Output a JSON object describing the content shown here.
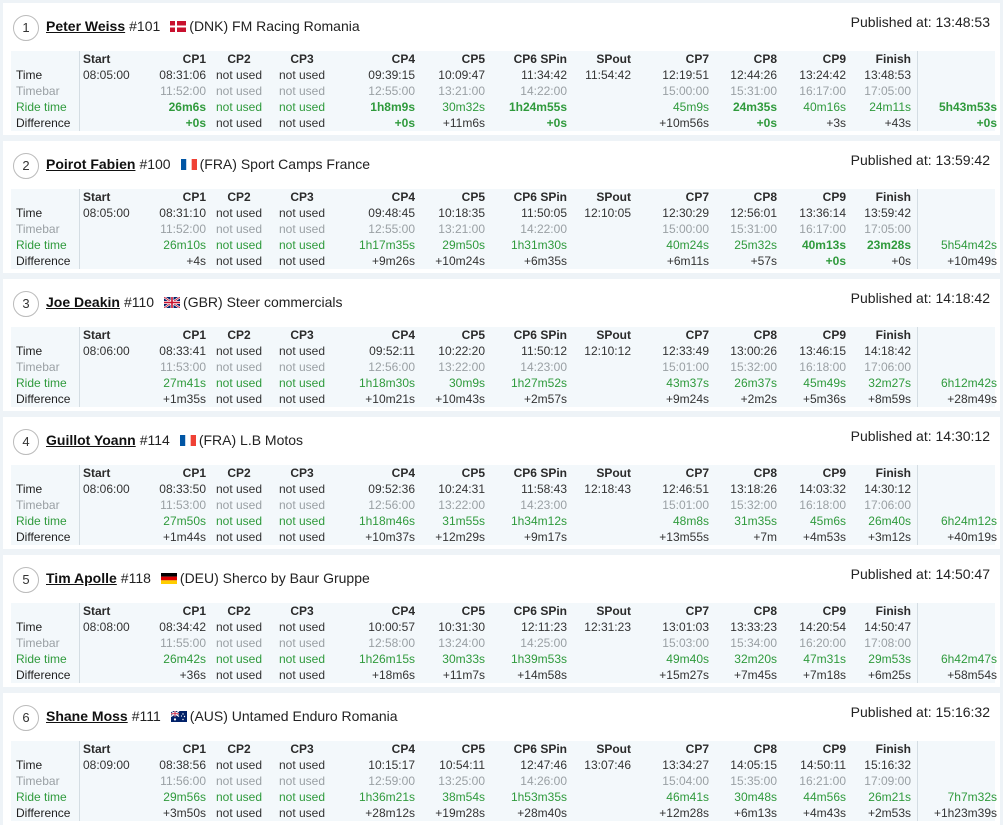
{
  "row_labels": [
    "Time",
    "Timebar",
    "Ride time",
    "Difference"
  ],
  "columns": [
    "Start",
    "CP1",
    "CP2",
    "CP3",
    "CP4",
    "CP5",
    "CP6 SPin",
    "SPout",
    "CP7",
    "CP8",
    "CP9",
    "Finish"
  ],
  "colors": {
    "ride_time": "#2f9a3c",
    "timebar": "#9aa0a4",
    "background": "#eef3f7"
  },
  "riders": [
    {
      "rank": "1",
      "name": "Peter Weiss",
      "number": "#101",
      "country": "DNK",
      "flag": "flag-dnk",
      "team": "(DNK) FM Racing Romania",
      "published": "Published at: 13:48:53",
      "time": [
        "08:05:00",
        "08:31:06",
        "not used",
        "not used",
        "09:39:15",
        "10:09:47",
        "11:34:42",
        "11:54:42",
        "12:19:51",
        "12:44:26",
        "13:24:42",
        "13:48:53"
      ],
      "timebar": [
        "",
        "11:52:00",
        "not used",
        "not used",
        "12:55:00",
        "13:21:00",
        "14:22:00",
        "",
        "15:00:00",
        "15:31:00",
        "16:17:00",
        "17:05:00"
      ],
      "ride": [
        "",
        "26m6s",
        "not used",
        "not used",
        "1h8m9s",
        "30m32s",
        "1h24m55s",
        "",
        "45m9s",
        "24m35s",
        "40m16s",
        "24m11s"
      ],
      "ride_total": "5h43m53s",
      "diff": [
        "",
        "+0s",
        "not used",
        "not used",
        "+0s",
        "+11m6s",
        "+0s",
        "",
        "+10m56s",
        "+0s",
        "+3s",
        "+43s"
      ],
      "diff_total": "+0s",
      "ride_bold": [
        1,
        4,
        6,
        9
      ],
      "diff_bold": [
        1,
        4,
        6,
        9
      ],
      "total_bold": true
    },
    {
      "rank": "2",
      "name": "Poirot Fabien",
      "number": "#100",
      "country": "FRA",
      "flag": "flag-fra",
      "team": "(FRA) Sport Camps France",
      "published": "Published at: 13:59:42",
      "time": [
        "08:05:00",
        "08:31:10",
        "not used",
        "not used",
        "09:48:45",
        "10:18:35",
        "11:50:05",
        "12:10:05",
        "12:30:29",
        "12:56:01",
        "13:36:14",
        "13:59:42"
      ],
      "timebar": [
        "",
        "11:52:00",
        "not used",
        "not used",
        "12:55:00",
        "13:21:00",
        "14:22:00",
        "",
        "15:00:00",
        "15:31:00",
        "16:17:00",
        "17:05:00"
      ],
      "ride": [
        "",
        "26m10s",
        "not used",
        "not used",
        "1h17m35s",
        "29m50s",
        "1h31m30s",
        "",
        "40m24s",
        "25m32s",
        "40m13s",
        "23m28s"
      ],
      "ride_total": "5h54m42s",
      "diff": [
        "",
        "+4s",
        "not used",
        "not used",
        "+9m26s",
        "+10m24s",
        "+6m35s",
        "",
        "+6m11s",
        "+57s",
        "+0s",
        "+0s"
      ],
      "diff_total": "+10m49s",
      "ride_bold": [
        10,
        11
      ],
      "diff_bold": [
        10
      ],
      "total_bold": false
    },
    {
      "rank": "3",
      "name": "Joe Deakin",
      "number": "#110",
      "country": "GBR",
      "flag": "flag-gbr",
      "team": "(GBR) Steer commercials",
      "published": "Published at: 14:18:42",
      "time": [
        "08:06:00",
        "08:33:41",
        "not used",
        "not used",
        "09:52:11",
        "10:22:20",
        "11:50:12",
        "12:10:12",
        "12:33:49",
        "13:00:26",
        "13:46:15",
        "14:18:42"
      ],
      "timebar": [
        "",
        "11:53:00",
        "not used",
        "not used",
        "12:56:00",
        "13:22:00",
        "14:23:00",
        "",
        "15:01:00",
        "15:32:00",
        "16:18:00",
        "17:06:00"
      ],
      "ride": [
        "",
        "27m41s",
        "not used",
        "not used",
        "1h18m30s",
        "30m9s",
        "1h27m52s",
        "",
        "43m37s",
        "26m37s",
        "45m49s",
        "32m27s"
      ],
      "ride_total": "6h12m42s",
      "diff": [
        "",
        "+1m35s",
        "not used",
        "not used",
        "+10m21s",
        "+10m43s",
        "+2m57s",
        "",
        "+9m24s",
        "+2m2s",
        "+5m36s",
        "+8m59s"
      ],
      "diff_total": "+28m49s",
      "ride_bold": [],
      "diff_bold": [],
      "total_bold": false
    },
    {
      "rank": "4",
      "name": "Guillot Yoann",
      "number": "#114",
      "country": "FRA",
      "flag": "flag-fra",
      "team": "(FRA) L.B Motos",
      "published": "Published at: 14:30:12",
      "time": [
        "08:06:00",
        "08:33:50",
        "not used",
        "not used",
        "09:52:36",
        "10:24:31",
        "11:58:43",
        "12:18:43",
        "12:46:51",
        "13:18:26",
        "14:03:32",
        "14:30:12"
      ],
      "timebar": [
        "",
        "11:53:00",
        "not used",
        "not used",
        "12:56:00",
        "13:22:00",
        "14:23:00",
        "",
        "15:01:00",
        "15:32:00",
        "16:18:00",
        "17:06:00"
      ],
      "ride": [
        "",
        "27m50s",
        "not used",
        "not used",
        "1h18m46s",
        "31m55s",
        "1h34m12s",
        "",
        "48m8s",
        "31m35s",
        "45m6s",
        "26m40s"
      ],
      "ride_total": "6h24m12s",
      "diff": [
        "",
        "+1m44s",
        "not used",
        "not used",
        "+10m37s",
        "+12m29s",
        "+9m17s",
        "",
        "+13m55s",
        "+7m",
        "+4m53s",
        "+3m12s"
      ],
      "diff_total": "+40m19s",
      "ride_bold": [],
      "diff_bold": [],
      "total_bold": false
    },
    {
      "rank": "5",
      "name": "Tim Apolle",
      "number": "#118",
      "country": "DEU",
      "flag": "flag-deu",
      "team": "(DEU) Sherco by Baur Gruppe",
      "published": "Published at: 14:50:47",
      "time": [
        "08:08:00",
        "08:34:42",
        "not used",
        "not used",
        "10:00:57",
        "10:31:30",
        "12:11:23",
        "12:31:23",
        "13:01:03",
        "13:33:23",
        "14:20:54",
        "14:50:47"
      ],
      "timebar": [
        "",
        "11:55:00",
        "not used",
        "not used",
        "12:58:00",
        "13:24:00",
        "14:25:00",
        "",
        "15:03:00",
        "15:34:00",
        "16:20:00",
        "17:08:00"
      ],
      "ride": [
        "",
        "26m42s",
        "not used",
        "not used",
        "1h26m15s",
        "30m33s",
        "1h39m53s",
        "",
        "49m40s",
        "32m20s",
        "47m31s",
        "29m53s"
      ],
      "ride_total": "6h42m47s",
      "diff": [
        "",
        "+36s",
        "not used",
        "not used",
        "+18m6s",
        "+11m7s",
        "+14m58s",
        "",
        "+15m27s",
        "+7m45s",
        "+7m18s",
        "+6m25s"
      ],
      "diff_total": "+58m54s",
      "ride_bold": [],
      "diff_bold": [],
      "total_bold": false
    },
    {
      "rank": "6",
      "name": "Shane Moss",
      "number": "#111",
      "country": "AUS",
      "flag": "flag-aus",
      "team": "(AUS) Untamed Enduro Romania",
      "published": "Published at: 15:16:32",
      "time": [
        "08:09:00",
        "08:38:56",
        "not used",
        "not used",
        "10:15:17",
        "10:54:11",
        "12:47:46",
        "13:07:46",
        "13:34:27",
        "14:05:15",
        "14:50:11",
        "15:16:32"
      ],
      "timebar": [
        "",
        "11:56:00",
        "not used",
        "not used",
        "12:59:00",
        "13:25:00",
        "14:26:00",
        "",
        "15:04:00",
        "15:35:00",
        "16:21:00",
        "17:09:00"
      ],
      "ride": [
        "",
        "29m56s",
        "not used",
        "not used",
        "1h36m21s",
        "38m54s",
        "1h53m35s",
        "",
        "46m41s",
        "30m48s",
        "44m56s",
        "26m21s"
      ],
      "ride_total": "7h7m32s",
      "diff": [
        "",
        "+3m50s",
        "not used",
        "not used",
        "+28m12s",
        "+19m28s",
        "+28m40s",
        "",
        "+12m28s",
        "+6m13s",
        "+4m43s",
        "+2m53s"
      ],
      "diff_total": "+1h23m39s",
      "ride_bold": [],
      "diff_bold": [],
      "total_bold": false
    }
  ]
}
